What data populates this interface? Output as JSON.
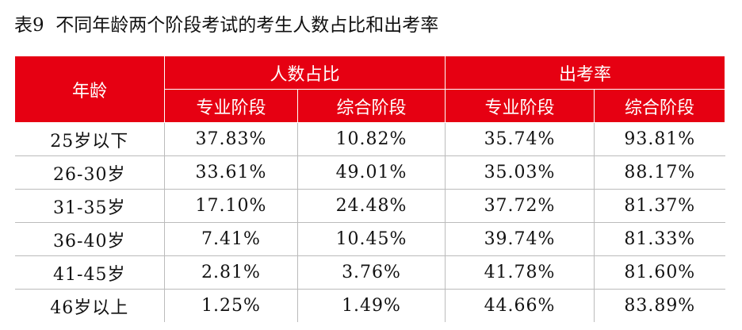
{
  "header": {
    "title": "表9  不同年龄两个阶段考试的考生人数占比和出考率"
  },
  "table": {
    "corner": "年龄",
    "groups": [
      "人数占比",
      "出考率"
    ],
    "sub_headers": [
      "专业阶段",
      "综合阶段",
      "专业阶段",
      "综合阶段"
    ],
    "rows": [
      [
        "25岁以下",
        "37.83%",
        "10.82%",
        "35.74%",
        "93.81%"
      ],
      [
        "26-30岁",
        "33.61%",
        "49.01%",
        "35.03%",
        "88.17%"
      ],
      [
        "31-35岁",
        "17.10%",
        "24.48%",
        "37.72%",
        "81.37%"
      ],
      [
        "36-40岁",
        "7.41%",
        "10.45%",
        "39.74%",
        "81.33%"
      ],
      [
        "41-45岁",
        "2.81%",
        "3.76%",
        "41.78%",
        "81.60%"
      ],
      [
        "46岁以上",
        "1.25%",
        "1.49%",
        "44.66%",
        "83.89%"
      ]
    ]
  }
}
